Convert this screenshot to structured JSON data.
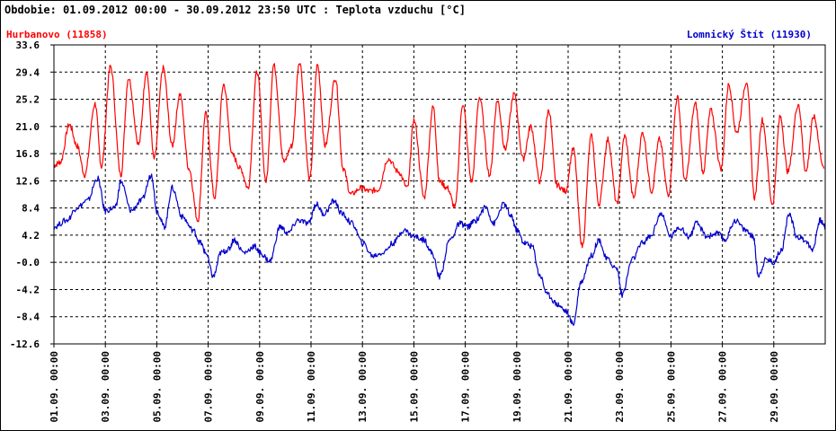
{
  "chart_data": {
    "type": "line",
    "title": "Obdobie: 01.09.2012 00:00 - 30.09.2012 23:50 UTC : Teplota vzduchu [°C]",
    "ylim": [
      -12.6,
      33.6
    ],
    "yticks": [
      "33.6",
      "29.4",
      "25.2",
      "21.0",
      "16.8",
      "12.6",
      "8.4",
      "4.2",
      "-0.0",
      "-4.2",
      "-8.4",
      "-12.6"
    ],
    "x_start_day": 1,
    "x_end_day": 31,
    "xticks": [
      {
        "day": 1,
        "label": "01.09. 00:00"
      },
      {
        "day": 3,
        "label": "03.09. 00:00"
      },
      {
        "day": 5,
        "label": "05.09. 00:00"
      },
      {
        "day": 7,
        "label": "07.09. 00:00"
      },
      {
        "day": 9,
        "label": "09.09. 00:00"
      },
      {
        "day": 11,
        "label": "11.09. 00:00"
      },
      {
        "day": 13,
        "label": "13.09. 00:00"
      },
      {
        "day": 15,
        "label": "15.09. 00:00"
      },
      {
        "day": 17,
        "label": "17.09. 00:00"
      },
      {
        "day": 19,
        "label": "19.09. 00:00"
      },
      {
        "day": 21,
        "label": "21.09. 00:00"
      },
      {
        "day": 23,
        "label": "23.09. 00:00"
      },
      {
        "day": 25,
        "label": "25.09. 00:00"
      },
      {
        "day": 27,
        "label": "27.09. 00:00"
      },
      {
        "day": 29,
        "label": "29.09. 00:00"
      }
    ],
    "grid": true,
    "series": [
      {
        "name": "Hurbanovo (11858)",
        "color": "#ff0000",
        "legend_position": "top-left",
        "x": [
          1.0,
          1.25,
          1.6,
          1.9,
          2.2,
          2.6,
          2.85,
          3.2,
          3.6,
          3.9,
          4.3,
          4.6,
          4.9,
          5.25,
          5.6,
          5.9,
          6.25,
          6.6,
          6.9,
          7.25,
          7.6,
          7.95,
          8.25,
          8.55,
          8.9,
          9.25,
          9.55,
          9.95,
          10.25,
          10.55,
          10.95,
          11.25,
          11.55,
          11.95,
          12.25,
          12.55,
          12.95,
          13.25,
          13.6,
          14.0,
          14.4,
          14.75,
          15.0,
          15.4,
          15.75,
          16.0,
          16.3,
          16.6,
          16.9,
          17.25,
          17.55,
          17.95,
          18.25,
          18.55,
          18.9,
          19.25,
          19.55,
          19.9,
          20.25,
          20.55,
          20.9,
          21.2,
          21.55,
          21.9,
          22.2,
          22.55,
          22.9,
          23.2,
          23.55,
          23.9,
          24.25,
          24.55,
          24.9,
          25.25,
          25.55,
          25.95,
          26.25,
          26.55,
          26.95,
          27.25,
          27.55,
          27.95,
          28.25,
          28.55,
          28.95,
          29.25,
          29.55,
          29.95,
          30.25,
          30.55,
          30.95
        ],
        "values": [
          15.0,
          15.5,
          21.3,
          18.0,
          13.5,
          24.5,
          14.8,
          30.3,
          13.5,
          28.5,
          18.2,
          29.5,
          16.0,
          30.0,
          18.0,
          26.0,
          14.5,
          6.5,
          23.0,
          10.0,
          27.5,
          16.5,
          14.5,
          11.5,
          29.5,
          12.5,
          30.5,
          15.5,
          18.0,
          31.0,
          12.8,
          30.5,
          18.0,
          28.5,
          14.5,
          10.5,
          11.5,
          11.0,
          11.2,
          16.0,
          14.0,
          11.5,
          22.0,
          10.0,
          24.0,
          12.5,
          11.5,
          8.5,
          24.5,
          12.5,
          25.5,
          13.5,
          25.0,
          17.5,
          26.0,
          16.0,
          21.0,
          12.5,
          23.5,
          12.0,
          11.0,
          17.5,
          2.5,
          19.5,
          9.0,
          19.0,
          9.0,
          19.5,
          10.0,
          20.0,
          11.0,
          19.0,
          10.5,
          25.5,
          12.5,
          24.5,
          14.0,
          23.5,
          14.5,
          27.5,
          20.0,
          28.0,
          10.0,
          22.0,
          9.0,
          22.5,
          14.0,
          24.5,
          14.0,
          22.5,
          14.5
        ]
      },
      {
        "name": "Lomnický Štít (11930)",
        "color": "#0000cc",
        "legend_position": "top-right",
        "x": [
          1.0,
          1.5,
          1.9,
          2.3,
          2.7,
          3.0,
          3.4,
          3.6,
          4.0,
          4.4,
          4.8,
          5.0,
          5.3,
          5.6,
          6.0,
          6.4,
          6.7,
          6.9,
          7.2,
          7.5,
          7.8,
          8.0,
          8.4,
          8.8,
          9.0,
          9.4,
          9.8,
          10.1,
          10.5,
          10.9,
          11.2,
          11.5,
          11.9,
          12.2,
          12.6,
          13.0,
          13.4,
          13.8,
          14.2,
          14.6,
          15.0,
          15.4,
          15.7,
          16.0,
          16.4,
          16.8,
          17.1,
          17.4,
          17.8,
          18.1,
          18.5,
          18.8,
          19.0,
          19.3,
          19.6,
          19.9,
          20.2,
          20.6,
          20.9,
          21.2,
          21.5,
          21.9,
          22.2,
          22.5,
          22.9,
          23.1,
          23.5,
          23.9,
          24.2,
          24.6,
          25.0,
          25.3,
          25.7,
          26.0,
          26.4,
          26.8,
          27.1,
          27.5,
          27.9,
          28.2,
          28.4,
          28.7,
          29.0,
          29.3,
          29.6,
          29.9,
          30.2,
          30.5,
          30.8,
          31.0
        ],
        "values": [
          5.5,
          6.5,
          8.5,
          9.5,
          13.0,
          8.0,
          8.5,
          12.5,
          8.0,
          9.5,
          13.5,
          8.0,
          5.5,
          11.5,
          7.0,
          5.0,
          3.0,
          1.5,
          -2.2,
          1.5,
          2.0,
          3.5,
          1.5,
          2.5,
          1.5,
          0.2,
          5.5,
          4.5,
          6.5,
          6.0,
          9.0,
          7.5,
          9.5,
          7.5,
          6.0,
          3.0,
          1.0,
          1.5,
          3.0,
          5.0,
          4.0,
          3.5,
          1.5,
          -2.2,
          3.5,
          6.0,
          5.5,
          6.5,
          8.5,
          6.0,
          9.0,
          7.0,
          5.0,
          3.0,
          2.5,
          -2.0,
          -5.0,
          -6.5,
          -7.5,
          -9.5,
          -3.0,
          1.0,
          3.5,
          0.5,
          -1.0,
          -5.0,
          0.5,
          3.0,
          4.0,
          7.5,
          4.0,
          5.5,
          4.0,
          6.0,
          4.0,
          4.5,
          3.5,
          6.5,
          5.0,
          4.0,
          -2.0,
          0.5,
          0.0,
          2.0,
          7.5,
          4.0,
          3.5,
          2.0,
          6.5,
          5.5
        ]
      }
    ]
  }
}
